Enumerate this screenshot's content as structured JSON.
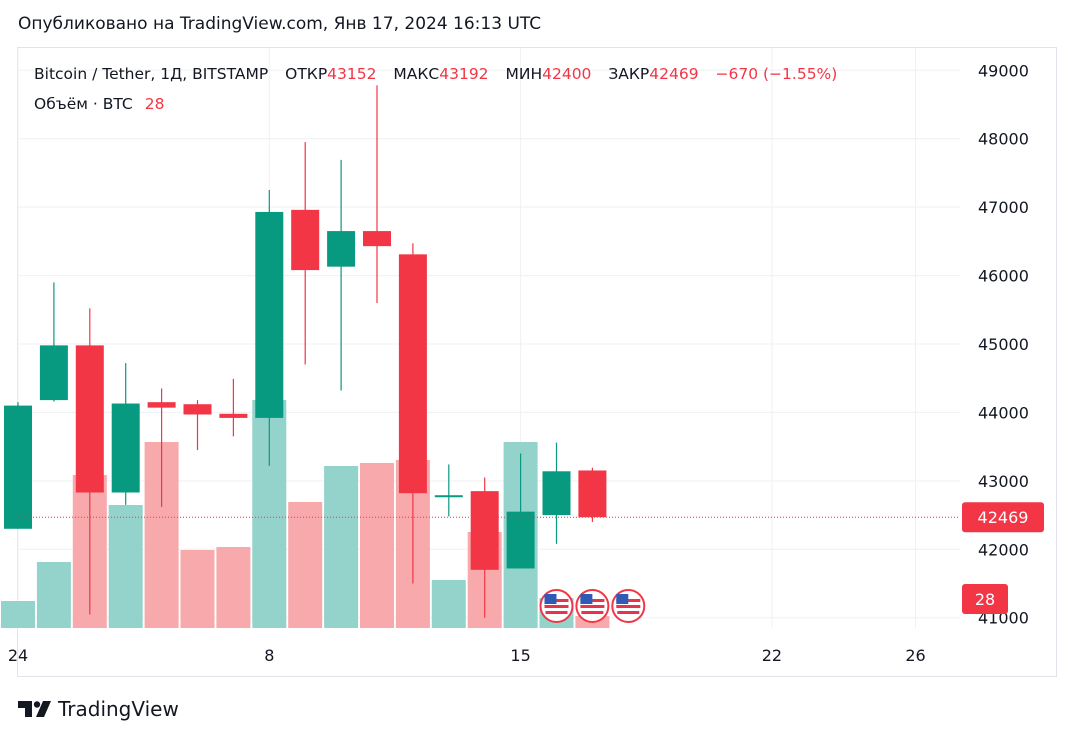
{
  "header": {
    "published": "Опубликовано на TradingView.com, Янв 17, 2024 16:13 UTC"
  },
  "legend": {
    "symbol": "Bitcoin / Tether, 1Д, BITSTAMP",
    "open_label": "ОТКР",
    "open": "43152",
    "high_label": "МАКС",
    "high": "43192",
    "low_label": "МИН",
    "low": "42400",
    "close_label": "ЗАКР",
    "close": "42469",
    "change": "−670 (−1.55%)",
    "volume_label": "Объём · BTC",
    "volume": "28"
  },
  "price_badge": "42469",
  "volume_badge": "28",
  "footer": {
    "brand": "TradingView"
  },
  "colors": {
    "up": "#089981",
    "down": "#f23645",
    "up_volume": "#93d3cb",
    "down_volume": "#f7a9ac",
    "grid": "#eef0f3"
  },
  "chart_data": {
    "type": "candlestick",
    "yticks": [
      "49000",
      "48000",
      "47000",
      "46000",
      "45000",
      "44000",
      "43000",
      "42000",
      "41000"
    ],
    "ylim": [
      40850,
      49150
    ],
    "xticks": [
      {
        "label": "24",
        "index": 0
      },
      {
        "label": "8",
        "index": 7
      },
      {
        "label": "15",
        "index": 14
      },
      {
        "label": "22",
        "index": 21
      },
      {
        "label": "26",
        "index": 25
      }
    ],
    "candles": [
      {
        "o": 42300,
        "h": 44150,
        "l": 42300,
        "c": 44100,
        "v": 0.09
      },
      {
        "o": 44180,
        "h": 45900,
        "l": 44160,
        "c": 44980,
        "v": 0.22
      },
      {
        "o": 44980,
        "h": 45520,
        "l": 41050,
        "c": 42830,
        "v": 0.51
      },
      {
        "o": 42830,
        "h": 44720,
        "l": 42650,
        "c": 44130,
        "v": 0.41
      },
      {
        "o": 44150,
        "h": 44350,
        "l": 42620,
        "c": 44070,
        "v": 0.62
      },
      {
        "o": 44120,
        "h": 44180,
        "l": 43450,
        "c": 43970,
        "v": 0.26
      },
      {
        "o": 43980,
        "h": 44490,
        "l": 43650,
        "c": 43920,
        "v": 0.27
      },
      {
        "o": 43920,
        "h": 47250,
        "l": 43220,
        "c": 46930,
        "v": 0.76
      },
      {
        "o": 46960,
        "h": 47950,
        "l": 44700,
        "c": 46080,
        "v": 0.42
      },
      {
        "o": 46130,
        "h": 47690,
        "l": 44320,
        "c": 46650,
        "v": 0.54
      },
      {
        "o": 46650,
        "h": 48780,
        "l": 45600,
        "c": 46430,
        "v": 0.55
      },
      {
        "o": 46310,
        "h": 46470,
        "l": 41500,
        "c": 42820,
        "v": 0.56
      },
      {
        "o": 42770,
        "h": 43240,
        "l": 42480,
        "c": 42790,
        "v": 0.16
      },
      {
        "o": 42850,
        "h": 43050,
        "l": 41000,
        "c": 41700,
        "v": 0.32
      },
      {
        "o": 41720,
        "h": 43400,
        "l": 41720,
        "c": 42550,
        "v": 0.62
      },
      {
        "o": 42500,
        "h": 43560,
        "l": 42080,
        "c": 43140,
        "v": 0.1
      },
      {
        "o": 43152,
        "h": 43192,
        "l": 42400,
        "c": 42469,
        "v": 0.04
      }
    ],
    "events": [
      15,
      16,
      17
    ],
    "last_price": 42469
  }
}
